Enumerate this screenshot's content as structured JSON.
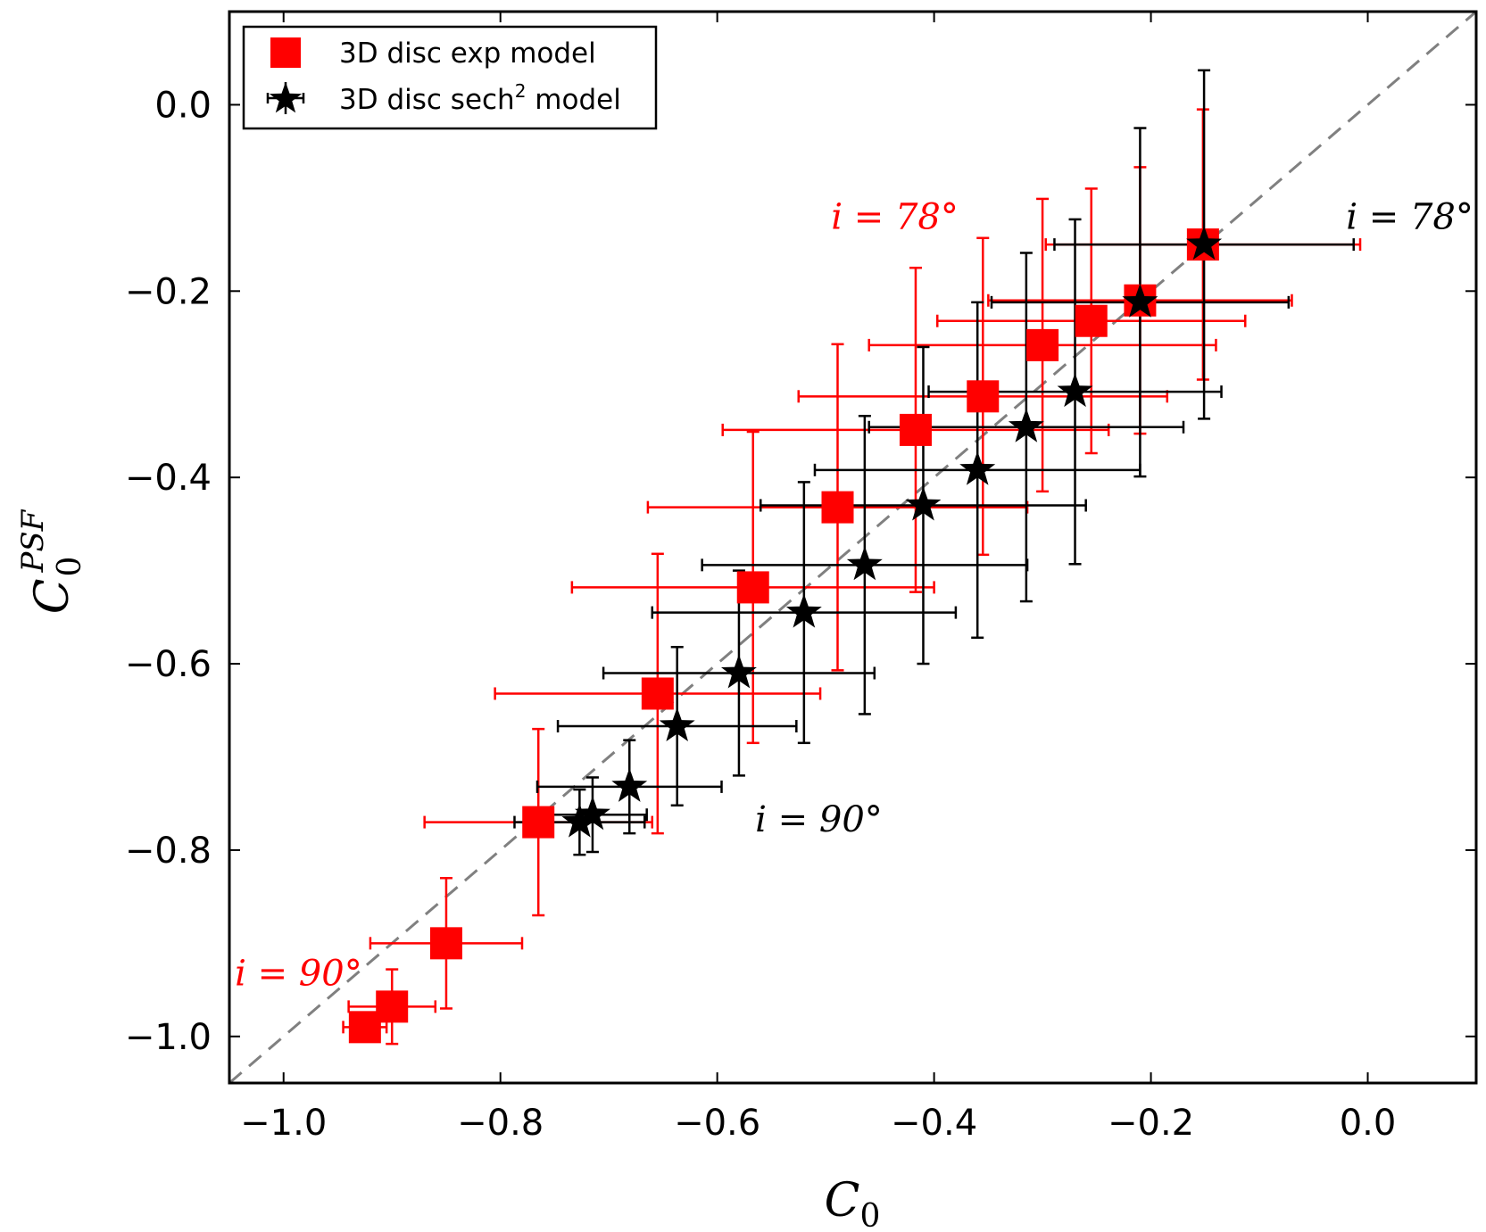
{
  "chart_data": {
    "type": "scatter",
    "title": "",
    "xlabel": "C_0",
    "ylabel": "C_0^PSF",
    "xlabel_parts": {
      "base": "C",
      "sub": "0"
    },
    "ylabel_parts": {
      "base": "C",
      "sub": "0",
      "sup": "PSF"
    },
    "xlim": [
      -1.05,
      0.1
    ],
    "ylim": [
      -1.05,
      0.1
    ],
    "xticks": [
      -1.0,
      -0.8,
      -0.6,
      -0.4,
      -0.2,
      0.0
    ],
    "yticks": [
      -1.0,
      -0.8,
      -0.6,
      -0.4,
      -0.2,
      0.0
    ],
    "xtick_labels": [
      "−1.0",
      "−0.8",
      "−0.6",
      "−0.4",
      "−0.2",
      "0.0"
    ],
    "ytick_labels": [
      "−1.0",
      "−0.8",
      "−0.6",
      "−0.4",
      "−0.2",
      "0.0"
    ],
    "grid": false,
    "reference_line": {
      "style": "dashed",
      "color": "#808080",
      "slope": 1,
      "intercept": 0
    },
    "legend": {
      "placement": "top-left",
      "entries": [
        {
          "label": "3D disc exp model",
          "marker": "square",
          "color": "#ff0000"
        },
        {
          "label_prefix": "3D disc sech",
          "label_sup": "2",
          "label_suffix": " model",
          "marker": "star",
          "color": "#000000"
        }
      ]
    },
    "series": [
      {
        "name": "3D disc exp model",
        "marker": "square",
        "color": "#ff0000",
        "points": [
          {
            "x": -0.925,
            "y": -0.99,
            "xerr": 0.02,
            "yerr": 0.015
          },
          {
            "x": -0.9,
            "y": -0.968,
            "xerr": 0.04,
            "yerr": 0.04
          },
          {
            "x": -0.85,
            "y": -0.9,
            "xerr": 0.07,
            "yerr": 0.07
          },
          {
            "x": -0.765,
            "y": -0.77,
            "xerr": 0.105,
            "yerr": 0.1
          },
          {
            "x": -0.655,
            "y": -0.632,
            "xerr": 0.15,
            "yerr": 0.15
          },
          {
            "x": -0.567,
            "y": -0.518,
            "xerr": 0.167,
            "yerr": 0.167
          },
          {
            "x": -0.489,
            "y": -0.432,
            "xerr": 0.175,
            "yerr": 0.175
          },
          {
            "x": -0.417,
            "y": -0.349,
            "xerr": 0.178,
            "yerr": 0.174
          },
          {
            "x": -0.355,
            "y": -0.313,
            "xerr": 0.17,
            "yerr": 0.17
          },
          {
            "x": -0.3,
            "y": -0.258,
            "xerr": 0.16,
            "yerr": 0.157
          },
          {
            "x": -0.255,
            "y": -0.232,
            "xerr": 0.142,
            "yerr": 0.142
          },
          {
            "x": -0.21,
            "y": -0.21,
            "xerr": 0.14,
            "yerr": 0.143
          },
          {
            "x": -0.152,
            "y": -0.15,
            "xerr": 0.145,
            "yerr": 0.145
          }
        ]
      },
      {
        "name": "3D disc sech2 model",
        "marker": "star",
        "color": "#000000",
        "points": [
          {
            "x": -0.727,
            "y": -0.77,
            "xerr": 0.06,
            "yerr": 0.035
          },
          {
            "x": -0.715,
            "y": -0.762,
            "xerr": 0.05,
            "yerr": 0.04
          },
          {
            "x": -0.681,
            "y": -0.732,
            "xerr": 0.085,
            "yerr": 0.05
          },
          {
            "x": -0.637,
            "y": -0.667,
            "xerr": 0.11,
            "yerr": 0.085
          },
          {
            "x": -0.58,
            "y": -0.61,
            "xerr": 0.125,
            "yerr": 0.11
          },
          {
            "x": -0.52,
            "y": -0.545,
            "xerr": 0.14,
            "yerr": 0.14
          },
          {
            "x": -0.464,
            "y": -0.494,
            "xerr": 0.15,
            "yerr": 0.16
          },
          {
            "x": -0.41,
            "y": -0.43,
            "xerr": 0.15,
            "yerr": 0.17
          },
          {
            "x": -0.36,
            "y": -0.392,
            "xerr": 0.15,
            "yerr": 0.18
          },
          {
            "x": -0.315,
            "y": -0.346,
            "xerr": 0.145,
            "yerr": 0.187
          },
          {
            "x": -0.27,
            "y": -0.308,
            "xerr": 0.135,
            "yerr": 0.185
          },
          {
            "x": -0.21,
            "y": -0.212,
            "xerr": 0.137,
            "yerr": 0.187
          },
          {
            "x": -0.151,
            "y": -0.15,
            "xerr": 0.138,
            "yerr": 0.187
          }
        ]
      }
    ],
    "annotations": [
      {
        "text": "i = 78°",
        "x": -0.495,
        "y": -0.133,
        "color": "#ff0000"
      },
      {
        "text": "i = 78°",
        "x": -0.02,
        "y": -0.133,
        "color": "#000000"
      },
      {
        "text": "i = 90°",
        "x": -0.565,
        "y": -0.78,
        "color": "#000000"
      },
      {
        "text": "i = 90°",
        "x": -1.045,
        "y": -0.945,
        "color": "#ff0000"
      }
    ]
  }
}
